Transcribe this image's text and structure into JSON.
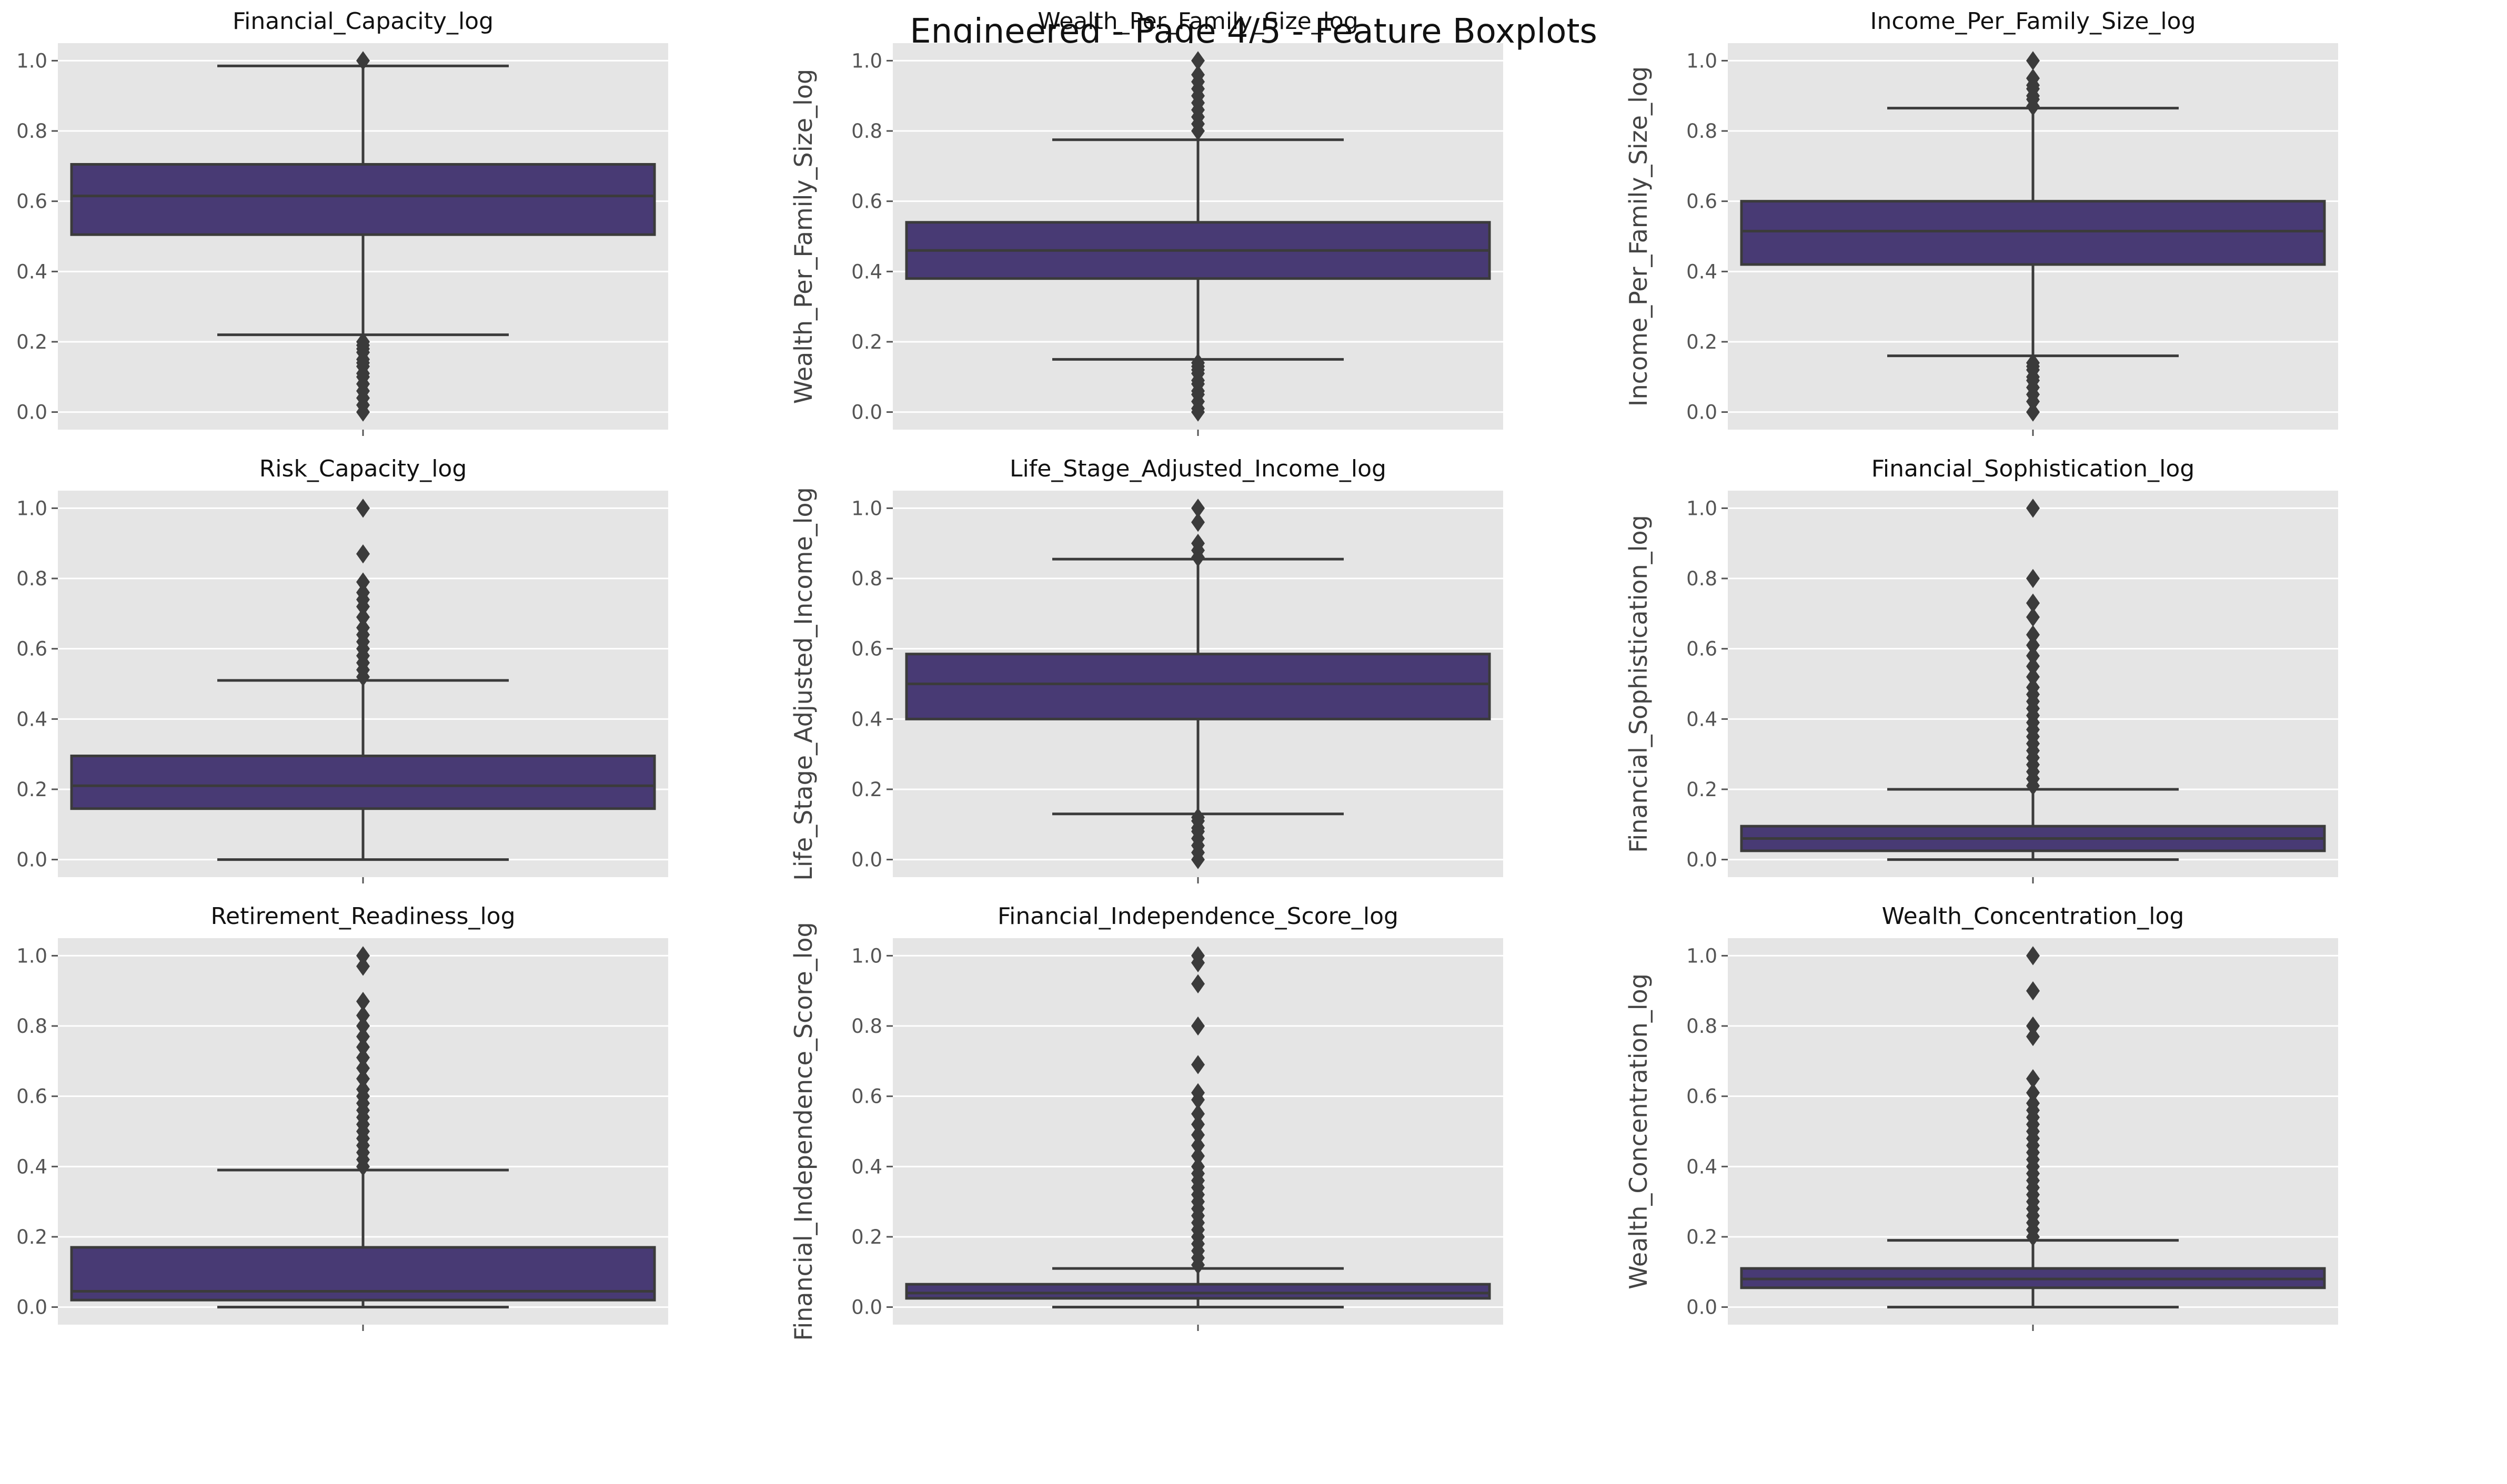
{
  "title": "Engineered - Page 4/5 - Feature Boxplots",
  "colors": {
    "box_fill": "#483a74",
    "line": "#3b3b3b",
    "panel_bg": "#e5e5e5",
    "grid": "#ffffff",
    "tick_text": "#555555"
  },
  "chart_data": [
    {
      "type": "box",
      "title": "Financial_Capacity_log",
      "ylabel": "Financial_Capacity_log",
      "ylim": [
        -0.05,
        1.05
      ],
      "yticks": [
        "0.0",
        "0.2",
        "0.4",
        "0.6",
        "0.8",
        "1.0"
      ],
      "grid": true,
      "stats": {
        "whisker_low": 0.22,
        "q1": 0.505,
        "median": 0.615,
        "q3": 0.705,
        "whisker_high": 0.985
      },
      "outliers": [
        0.0,
        0.02,
        0.04,
        0.06,
        0.08,
        0.1,
        0.11,
        0.13,
        0.14,
        0.15,
        0.17,
        0.18,
        0.19,
        0.2,
        1.0
      ]
    },
    {
      "type": "box",
      "title": "Wealth_Per_Family_Size_log",
      "ylabel": "Wealth_Per_Family_Size_log",
      "ylim": [
        -0.05,
        1.05
      ],
      "yticks": [
        "0.0",
        "0.2",
        "0.4",
        "0.6",
        "0.8",
        "1.0"
      ],
      "grid": true,
      "stats": {
        "whisker_low": 0.15,
        "q1": 0.38,
        "median": 0.46,
        "q3": 0.54,
        "whisker_high": 0.775
      },
      "outliers": [
        0.0,
        0.01,
        0.03,
        0.05,
        0.06,
        0.08,
        0.09,
        0.11,
        0.12,
        0.13,
        0.14,
        0.8,
        0.82,
        0.84,
        0.86,
        0.88,
        0.9,
        0.92,
        0.94,
        0.96,
        1.0
      ]
    },
    {
      "type": "box",
      "title": "Income_Per_Family_Size_log",
      "ylabel": "Income_Per_Family_Size_log",
      "ylim": [
        -0.05,
        1.05
      ],
      "yticks": [
        "0.0",
        "0.2",
        "0.4",
        "0.6",
        "0.8",
        "1.0"
      ],
      "grid": true,
      "stats": {
        "whisker_low": 0.16,
        "q1": 0.42,
        "median": 0.515,
        "q3": 0.6,
        "whisker_high": 0.865
      },
      "outliers": [
        0.0,
        0.03,
        0.05,
        0.07,
        0.09,
        0.1,
        0.12,
        0.13,
        0.14,
        0.87,
        0.89,
        0.9,
        0.92,
        0.93,
        0.95,
        1.0
      ]
    },
    {
      "type": "box",
      "title": "Risk_Capacity_log",
      "ylabel": "Risk_Capacity_log",
      "ylim": [
        -0.05,
        1.05
      ],
      "yticks": [
        "0.0",
        "0.2",
        "0.4",
        "0.6",
        "0.8",
        "1.0"
      ],
      "grid": true,
      "stats": {
        "whisker_low": 0.0,
        "q1": 0.145,
        "median": 0.21,
        "q3": 0.295,
        "whisker_high": 0.51
      },
      "outliers": [
        0.52,
        0.54,
        0.56,
        0.58,
        0.6,
        0.62,
        0.64,
        0.66,
        0.69,
        0.72,
        0.74,
        0.76,
        0.79,
        0.87,
        1.0
      ]
    },
    {
      "type": "box",
      "title": "Life_Stage_Adjusted_Income_log",
      "ylabel": "Life_Stage_Adjusted_Income_log",
      "ylim": [
        -0.05,
        1.05
      ],
      "yticks": [
        "0.0",
        "0.2",
        "0.4",
        "0.6",
        "0.8",
        "1.0"
      ],
      "grid": true,
      "stats": {
        "whisker_low": 0.13,
        "q1": 0.4,
        "median": 0.5,
        "q3": 0.585,
        "whisker_high": 0.855
      },
      "outliers": [
        0.0,
        0.02,
        0.04,
        0.06,
        0.08,
        0.09,
        0.11,
        0.12,
        0.86,
        0.88,
        0.9,
        0.96,
        1.0
      ]
    },
    {
      "type": "box",
      "title": "Financial_Sophistication_log",
      "ylabel": "Financial_Sophistication_log",
      "ylim": [
        -0.05,
        1.05
      ],
      "yticks": [
        "0.0",
        "0.2",
        "0.4",
        "0.6",
        "0.8",
        "1.0"
      ],
      "grid": true,
      "stats": {
        "whisker_low": 0.0,
        "q1": 0.025,
        "median": 0.06,
        "q3": 0.095,
        "whisker_high": 0.2
      },
      "outliers": [
        0.21,
        0.23,
        0.25,
        0.27,
        0.29,
        0.31,
        0.33,
        0.35,
        0.37,
        0.39,
        0.41,
        0.43,
        0.45,
        0.47,
        0.49,
        0.52,
        0.55,
        0.58,
        0.61,
        0.64,
        0.69,
        0.73,
        0.8,
        1.0
      ]
    },
    {
      "type": "box",
      "title": "Retirement_Readiness_log",
      "ylabel": "Retirement_Readiness_log",
      "ylim": [
        -0.05,
        1.05
      ],
      "yticks": [
        "0.0",
        "0.2",
        "0.4",
        "0.6",
        "0.8",
        "1.0"
      ],
      "grid": true,
      "stats": {
        "whisker_low": 0.0,
        "q1": 0.02,
        "median": 0.045,
        "q3": 0.17,
        "whisker_high": 0.39
      },
      "outliers": [
        0.4,
        0.42,
        0.44,
        0.46,
        0.48,
        0.5,
        0.52,
        0.54,
        0.56,
        0.58,
        0.6,
        0.62,
        0.65,
        0.68,
        0.71,
        0.74,
        0.77,
        0.8,
        0.83,
        0.87,
        0.97,
        1.0
      ]
    },
    {
      "type": "box",
      "title": "Financial_Independence_Score_log",
      "ylabel": "Financial_Independence_Score_log",
      "ylim": [
        -0.05,
        1.05
      ],
      "yticks": [
        "0.0",
        "0.2",
        "0.4",
        "0.6",
        "0.8",
        "1.0"
      ],
      "grid": true,
      "stats": {
        "whisker_low": 0.0,
        "q1": 0.025,
        "median": 0.04,
        "q3": 0.065,
        "whisker_high": 0.11
      },
      "outliers": [
        0.12,
        0.14,
        0.16,
        0.18,
        0.2,
        0.22,
        0.24,
        0.26,
        0.28,
        0.3,
        0.32,
        0.34,
        0.36,
        0.38,
        0.4,
        0.43,
        0.46,
        0.49,
        0.52,
        0.55,
        0.59,
        0.61,
        0.69,
        0.8,
        0.92,
        0.98,
        1.0
      ]
    },
    {
      "type": "box",
      "title": "Wealth_Concentration_log",
      "ylabel": "Wealth_Concentration_log",
      "ylim": [
        -0.05,
        1.05
      ],
      "yticks": [
        "0.0",
        "0.2",
        "0.4",
        "0.6",
        "0.8",
        "1.0"
      ],
      "grid": true,
      "stats": {
        "whisker_low": 0.0,
        "q1": 0.055,
        "median": 0.08,
        "q3": 0.11,
        "whisker_high": 0.19
      },
      "outliers": [
        0.2,
        0.22,
        0.24,
        0.26,
        0.28,
        0.3,
        0.32,
        0.34,
        0.36,
        0.38,
        0.4,
        0.42,
        0.44,
        0.46,
        0.48,
        0.5,
        0.52,
        0.54,
        0.56,
        0.58,
        0.61,
        0.65,
        0.77,
        0.8,
        0.9,
        1.0
      ]
    }
  ]
}
